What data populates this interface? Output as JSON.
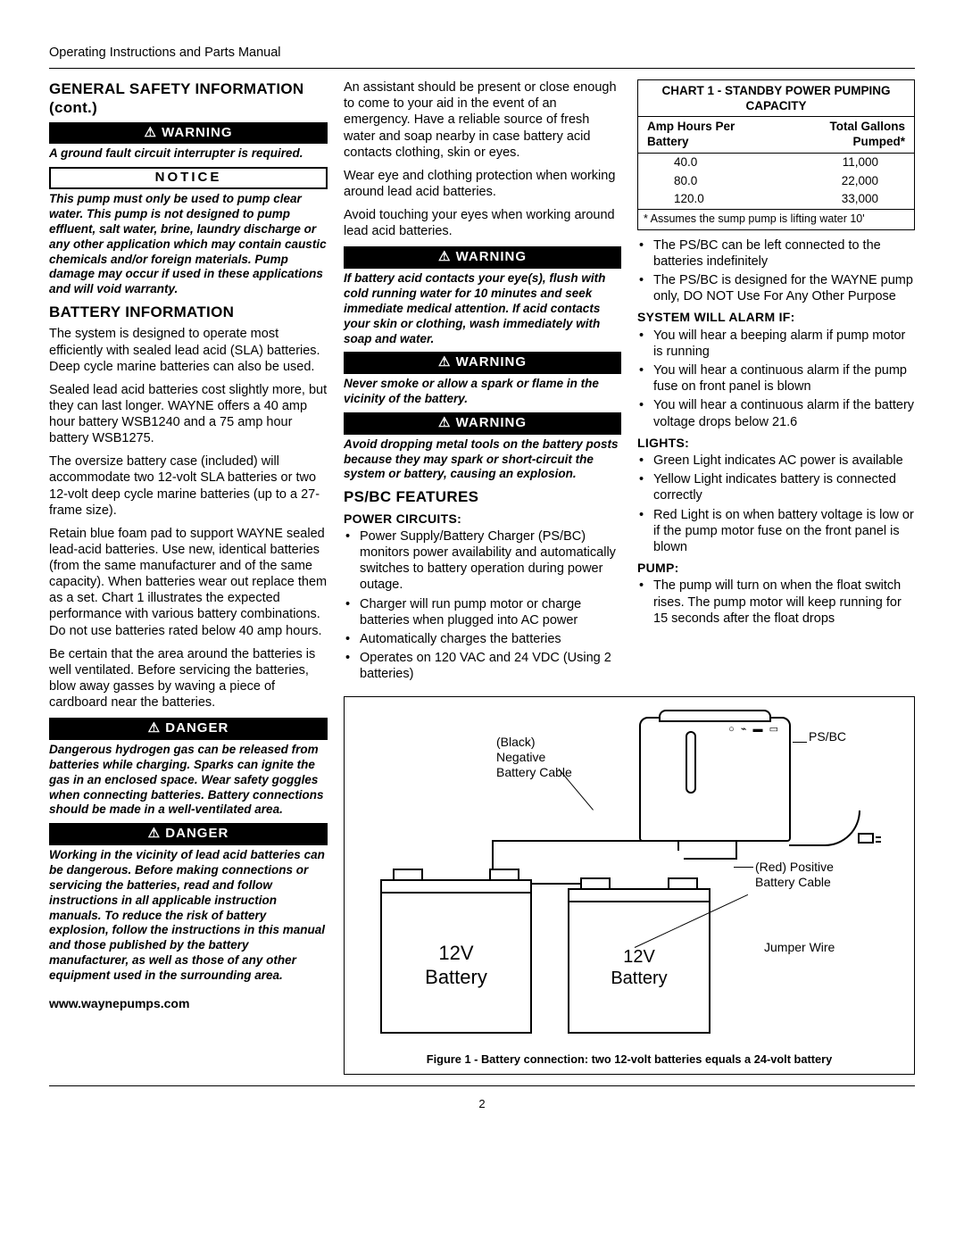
{
  "header": "Operating Instructions and Parts Manual",
  "col1": {
    "title1": "GENERAL SAFETY INFORMATION (cont.)",
    "banner_warn": "WARNING",
    "warn1": "A ground fault circuit interrupter is required.",
    "banner_notice": "NOTICE",
    "notice1": "This pump must only be used to pump clear water. This pump is not designed to pump effluent, salt water, brine, laundry discharge or any other application which may contain caustic chemicals and/or foreign materials. Pump damage may occur if used in these applications and will void warranty.",
    "title2": "BATTERY INFORMATION",
    "p1": "The system is designed to operate most efficiently with sealed lead acid (SLA) batteries. Deep cycle marine batteries can also be used.",
    "p2": "Sealed lead acid batteries cost slightly more, but they can last longer. WAYNE offers a 40 amp hour battery WSB1240 and a 75 amp hour battery WSB1275.",
    "p3": "The oversize battery case (included) will accommodate two 12-volt SLA batteries or two 12-volt deep cycle marine batteries (up to a 27-frame size).",
    "p4": "Retain blue foam pad to support WAYNE sealed lead-acid batteries. Use new, identical batteries (from the same manufacturer and of the same capacity). When batteries wear out replace them as a set. Chart 1 illustrates the expected performance with various battery combinations. Do not use batteries rated below 40 amp hours.",
    "p5": "Be certain that the area around the batteries is well ventilated. Before servicing the batteries, blow away gasses by waving a piece of cardboard near the batteries.",
    "banner_danger": "DANGER",
    "danger1": "Dangerous hydrogen gas can be released from batteries while charging. Sparks can ignite the gas in an enclosed space. Wear safety goggles when connecting batteries. Battery connections should be made in a well-ventilated area.",
    "danger2": "Working in the vicinity of lead acid batteries can be dangerous. Before making connections or servicing the batteries, read and follow instructions in all applicable instruction manuals. To reduce the risk of battery explosion, follow the instructions in this manual and those published by the battery manufacturer, as well as those of any other equipment used in the surrounding area."
  },
  "col2": {
    "p1": "An assistant should be present or close enough to come to your aid in the event of an emergency. Have a reliable source of fresh water and soap nearby in case battery acid contacts clothing, skin or eyes.",
    "p2": "Wear eye and clothing protection when working around lead acid batteries.",
    "p3": "Avoid touching your eyes when working around lead acid batteries.",
    "banner_warn": "WARNING",
    "warn1": "If battery acid contacts your eye(s), flush with cold running water for 10 minutes and seek immediate medical attention. If acid contacts your skin or clothing, wash immediately with soap and water.",
    "warn2": "Never smoke or allow a spark or flame in the vicinity of the battery.",
    "warn3": "Avoid dropping metal tools on the battery posts because they may spark or short-circuit the system or battery, causing an explosion.",
    "title_features": "PS/BC FEATURES",
    "sub_power": "POWER CIRCUITS:",
    "power_items": [
      "Power Supply/Battery Charger (PS/BC) monitors power availability and automatically switches to battery operation during power outage.",
      "Charger will run pump motor or charge batteries when plugged into AC power",
      "Automatically charges the batteries",
      "Operates on 120 VAC and 24 VDC (Using 2 batteries)"
    ]
  },
  "col3": {
    "chart_title": "CHART 1 - STANDBY POWER PUMPING CAPACITY",
    "chart_h1": "Amp Hours Per Battery",
    "chart_h2": "Total Gallons Pumped*",
    "chart_rows": [
      [
        "40.0",
        "11,000"
      ],
      [
        "80.0",
        "22,000"
      ],
      [
        "120.0",
        "33,000"
      ]
    ],
    "chart_foot": "* Assumes the sump pump is lifting water 10'",
    "after_chart": [
      "The PS/BC can be left connected to the batteries indefinitely",
      "The PS/BC is designed for the WAYNE pump only, DO NOT Use For Any Other Purpose"
    ],
    "sub_alarm": "SYSTEM WILL ALARM IF:",
    "alarm_items": [
      "You will hear a beeping alarm if pump motor is running",
      "You will hear a continuous alarm if the pump fuse on front panel is blown",
      "You will hear a continuous alarm if the battery voltage drops below 21.6"
    ],
    "sub_lights": "LIGHTS:",
    "lights_items": [
      "Green Light indicates AC power is available",
      "Yellow Light indicates battery is connected correctly",
      "Red Light is on when battery voltage is low or if the pump motor fuse on the front panel is blown"
    ],
    "sub_pump": "PUMP:",
    "pump_items": [
      "The pump will turn on when the float switch rises. The pump motor will keep running for 15 seconds after the float drops"
    ]
  },
  "figure": {
    "neg_label": "(Black)\nNegative\nBattery Cable",
    "psbc_label": "PS/BC",
    "pos_label": "(Red) Positive\nBattery Cable",
    "jumper_label": "Jumper Wire",
    "bat_label": "12V\nBattery",
    "caption": "Figure 1 - Battery connection: two 12-volt batteries equals a 24-volt battery"
  },
  "footer_url": "www.waynepumps.com",
  "page_num": "2"
}
